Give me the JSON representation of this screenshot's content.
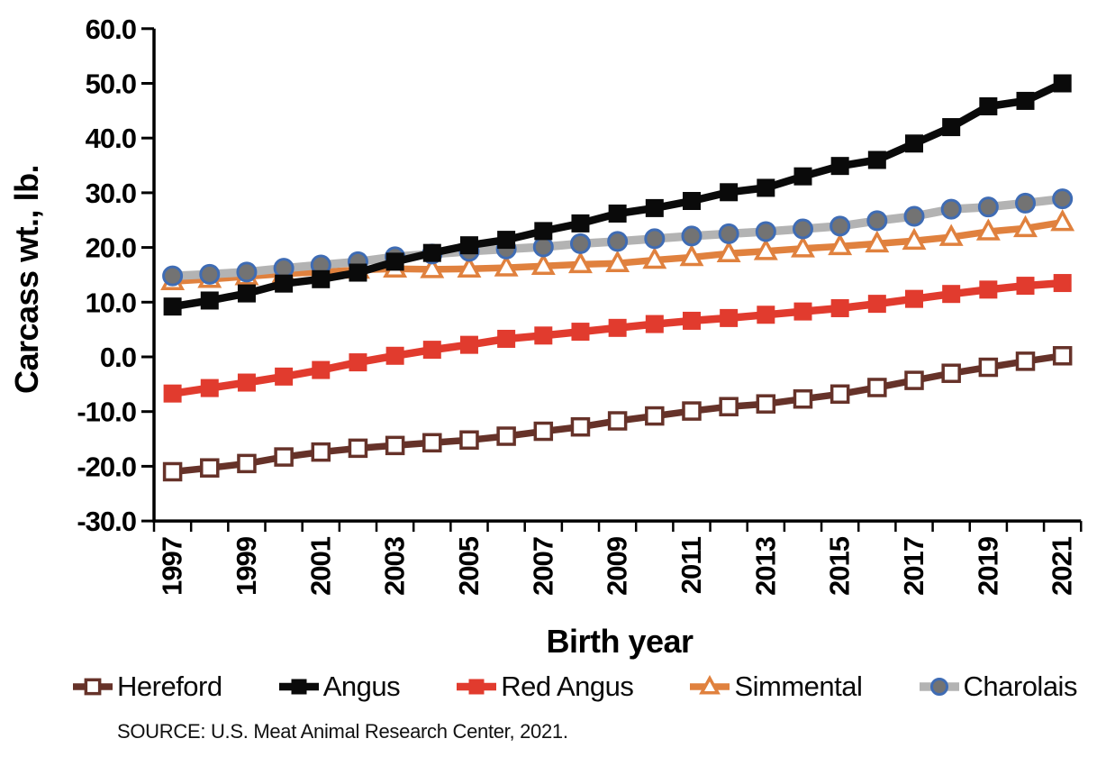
{
  "chart_data": {
    "type": "line",
    "title": "",
    "xlabel": "Birth year",
    "ylabel": "Carcass wt., lb.",
    "x": [
      1997,
      1998,
      1999,
      2000,
      2001,
      2002,
      2003,
      2004,
      2005,
      2006,
      2007,
      2008,
      2009,
      2010,
      2011,
      2012,
      2013,
      2014,
      2015,
      2016,
      2017,
      2018,
      2019,
      2020,
      2021
    ],
    "x_label_indices": [
      0,
      2,
      4,
      6,
      8,
      10,
      12,
      14,
      16,
      18,
      20,
      22,
      24
    ],
    "ylim": [
      -30,
      60
    ],
    "y_tick_values": [
      60,
      50,
      40,
      30,
      20,
      10,
      0,
      -10,
      -20,
      -30
    ],
    "y_tick_labels": [
      "60.0",
      "50.0",
      "40.0",
      "30.0",
      "20.0",
      "10.0",
      "0.0",
      "-10.0",
      "-20.0",
      "-30.0"
    ],
    "grid": "off",
    "legend_position": "bottom",
    "draw_order": [
      3,
      4,
      1,
      2,
      0
    ],
    "series": [
      {
        "name": "Hereford",
        "color": "#663229",
        "marker": "open-square",
        "marker_fill": "#ffffff",
        "marker_stroke": "#663229",
        "line_width": 7.5,
        "values": [
          -21.0,
          -20.3,
          -19.5,
          -18.3,
          -17.4,
          -16.7,
          -16.2,
          -15.7,
          -15.2,
          -14.5,
          -13.6,
          -12.8,
          -11.7,
          -10.8,
          -9.9,
          -9.1,
          -8.6,
          -7.7,
          -6.8,
          -5.6,
          -4.3,
          -3.0,
          -1.9,
          -0.8,
          0.2
        ]
      },
      {
        "name": "Angus",
        "color": "#0a0a0a",
        "marker": "filled-square",
        "marker_fill": "#0a0a0a",
        "marker_stroke": "#0a0a0a",
        "line_width": 8.5,
        "values": [
          9.2,
          10.3,
          11.6,
          13.4,
          14.2,
          15.4,
          17.4,
          19.0,
          20.4,
          21.4,
          23.0,
          24.4,
          26.2,
          27.2,
          28.5,
          30.1,
          30.9,
          33.0,
          34.9,
          36.0,
          39.0,
          42.0,
          45.8,
          46.8,
          50.0
        ]
      },
      {
        "name": "Red Angus",
        "color": "#e13b2e",
        "marker": "filled-square",
        "marker_fill": "#e13b2e",
        "marker_stroke": "#e13b2e",
        "line_width": 8.5,
        "values": [
          -6.7,
          -5.7,
          -4.7,
          -3.6,
          -2.4,
          -1.0,
          0.2,
          1.3,
          2.2,
          3.3,
          3.9,
          4.6,
          5.3,
          6.0,
          6.6,
          7.1,
          7.7,
          8.3,
          8.9,
          9.7,
          10.6,
          11.5,
          12.3,
          13.0,
          13.5
        ]
      },
      {
        "name": "Simmental",
        "color": "#e0813e",
        "marker": "open-triangle",
        "marker_fill": "#ffffff",
        "marker_stroke": "#e0813e",
        "line_width": 7.5,
        "values": [
          13.8,
          14.2,
          14.7,
          15.2,
          15.5,
          15.9,
          16.1,
          16.0,
          16.1,
          16.3,
          16.6,
          16.9,
          17.1,
          17.7,
          18.2,
          18.9,
          19.3,
          19.8,
          20.2,
          20.7,
          21.2,
          21.9,
          22.9,
          23.5,
          24.6
        ]
      },
      {
        "name": "Charolais",
        "color": "#b3b3b3",
        "marker": "filled-circle",
        "marker_fill": "#737373",
        "marker_stroke": "#3f6cb4",
        "line_width": 9.5,
        "values": [
          14.8,
          15.1,
          15.5,
          16.2,
          16.8,
          17.4,
          18.3,
          18.8,
          19.3,
          19.7,
          20.1,
          20.7,
          21.1,
          21.6,
          22.1,
          22.5,
          22.9,
          23.4,
          23.9,
          24.9,
          25.7,
          27.0,
          27.4,
          28.1,
          28.9
        ]
      }
    ],
    "source": "SOURCE: U.S. Meat Animal Research Center, 2021."
  }
}
